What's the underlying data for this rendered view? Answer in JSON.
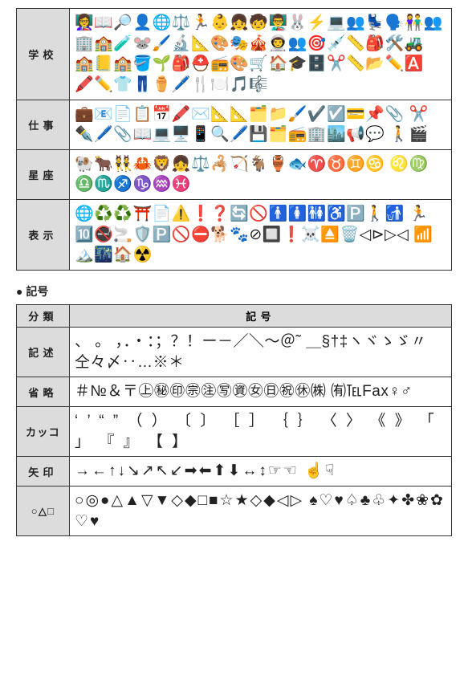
{
  "upperTable": {
    "rows": [
      {
        "label": "学校",
        "content": "👩‍🏫📖🔎👤🌐⚖️🏃👶👧🧒👨‍🏫🐰⚡💻👥💺🗣️👫👥 🏢🏫🧪🐭🖌️🔬📐🎨🎭🎪👨‍🚀👥🎯💉📏🎒🛠️🚜 🏫📒🏫🪣🌱🎒⛑️📻🎨🛒🏠🎓🗄️✂️📏📂✏️🅰️ 🖍️✏️👕👖⚱️🖊️🍴🍽️🎵🎼"
      },
      {
        "label": "仕事",
        "content": "💼📧📄📋📅🖍️✉️📐📐🗂️📁🖌️✔️☑️💳📌📎 ✂️✒️🖊️📎📖💻🖥️📱🔍🖊️💾🗂️📻🏢🏙️📢💬 🚶🎬"
      },
      {
        "label": "星座",
        "content": "🐏🐂👯🦀🦁👧⚖️🦂🏹🐐🏺🐟♈♉♊♋ ♌♍♎♏♐♑♒♓"
      },
      {
        "label": "表示",
        "content": "🌐♻️♻️⛩️📄⚠️❗❓🔄🚫🚹🚺🚻♿🅿️🚶🚮 🏃🔟🚭🚬🛡️🅿️🚫⛔🐕🐾⊘🔲❗☠️⏏️🗑️◁⊳▷◁ 📶🏔️🌃🏠☢️"
      }
    ]
  },
  "sectionHeading": "● 記号",
  "lowerTable": {
    "header": {
      "col1": "分類",
      "col2": "記号"
    },
    "rows": [
      {
        "label": "記述",
        "content": "、 。 ，．・：；？！ー－／＼～＠˜ ＿§†‡ヽヾゝゞ〃仝々〆‥…※＊"
      },
      {
        "label": "省略",
        "content": "＃№＆〒㊤㊙㊞㊪㊟㊢㊮㊛㊐㊗㊡㈱ ㈲℡Fax♀♂"
      },
      {
        "label": "カッコ",
        "content": "‘ ’ “ ” （ ） 〔 〕 ［ ］ ｛ ｝ 〈 〉 《 》 「 」 『 』 【 】"
      },
      {
        "label": "矢印",
        "content": "→←↑↓↘↗↖↙➡⬅⬆⬇↔↕☞☜ ☝☟"
      },
      {
        "label": "○△□",
        "content": "○◎●△▲▽▼◇◆□■☆★◇◆◁▷ ♠♡♥♤♣♧✦✤❀✿♡♥"
      }
    ]
  },
  "style": {
    "bg": "#ffffff",
    "cellBg": "#ffffff",
    "labelBg": "#dcdcdc",
    "border": "#333333",
    "text": "#222222",
    "labelFontSize": 13,
    "symbolFontSize": 19,
    "labelColWidth": 66,
    "pageWidth": 583
  }
}
